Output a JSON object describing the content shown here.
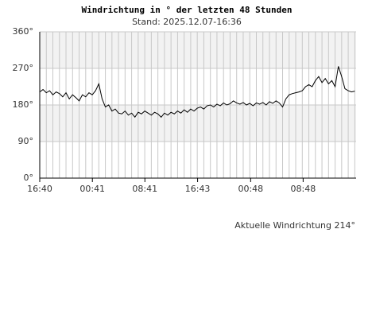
{
  "chart_data": {
    "type": "line",
    "title": "Windrichtung in ° der letzten 48 Stunden",
    "subtitle": "Stand: 2025.12.07-16:36",
    "annotation": "Aktuelle Windrichtung 214°",
    "x": [
      0,
      0.5,
      1,
      1.5,
      2,
      2.5,
      3,
      3.5,
      4,
      4.5,
      5,
      5.5,
      6,
      6.5,
      7,
      7.5,
      8,
      8.5,
      9,
      9.5,
      10,
      10.5,
      11,
      11.5,
      12,
      12.5,
      13,
      13.5,
      14,
      14.5,
      15,
      15.5,
      16,
      16.5,
      17,
      17.5,
      18,
      18.5,
      19,
      19.5,
      20,
      20.5,
      21,
      21.5,
      22,
      22.5,
      23,
      23.5,
      24,
      24.5,
      25,
      25.5,
      26,
      26.5,
      27,
      27.5,
      28,
      28.5,
      29,
      29.5,
      30,
      30.5,
      31,
      31.5,
      32,
      32.5,
      33,
      33.5,
      34,
      34.5,
      35,
      35.5,
      36,
      36.5,
      37,
      37.5,
      38,
      38.5,
      39,
      39.5,
      40,
      40.5,
      41,
      41.5,
      42,
      42.5,
      43,
      43.5,
      44,
      44.5,
      45,
      45.5,
      46,
      46.5,
      47,
      47.5,
      48
    ],
    "series": [
      {
        "color": "#000000",
        "values": [
          212,
          218,
          210,
          215,
          205,
          212,
          208,
          200,
          210,
          195,
          205,
          198,
          190,
          205,
          200,
          210,
          205,
          215,
          232,
          195,
          175,
          180,
          165,
          170,
          160,
          158,
          165,
          155,
          160,
          150,
          162,
          158,
          165,
          160,
          155,
          162,
          158,
          150,
          160,
          155,
          162,
          158,
          165,
          160,
          168,
          162,
          170,
          165,
          172,
          175,
          170,
          178,
          180,
          175,
          182,
          178,
          185,
          180,
          183,
          190,
          185,
          182,
          186,
          180,
          184,
          178,
          185,
          182,
          186,
          180,
          188,
          184,
          190,
          185,
          175,
          195,
          205,
          208,
          210,
          212,
          215,
          225,
          230,
          225,
          240,
          250,
          235,
          245,
          232,
          240,
          225,
          275,
          250,
          220,
          215,
          212,
          214
        ]
      }
    ],
    "xlim": [
      0,
      48.2
    ],
    "xticks": [
      {
        "value": 0,
        "label": "16:40"
      },
      {
        "value": 8.02,
        "label": "00:41"
      },
      {
        "value": 16.02,
        "label": "08:41"
      },
      {
        "value": 24.05,
        "label": "16:43"
      },
      {
        "value": 32.13,
        "label": "00:48"
      },
      {
        "value": 40.13,
        "label": "08:48"
      }
    ],
    "ylim": [
      0,
      360
    ],
    "yticks": [
      {
        "value": 0,
        "label": "0°"
      },
      {
        "value": 90,
        "label": "90°"
      },
      {
        "value": 180,
        "label": "180°"
      },
      {
        "value": 270,
        "label": "270°"
      },
      {
        "value": 360,
        "label": "360°"
      }
    ],
    "grid": true
  }
}
